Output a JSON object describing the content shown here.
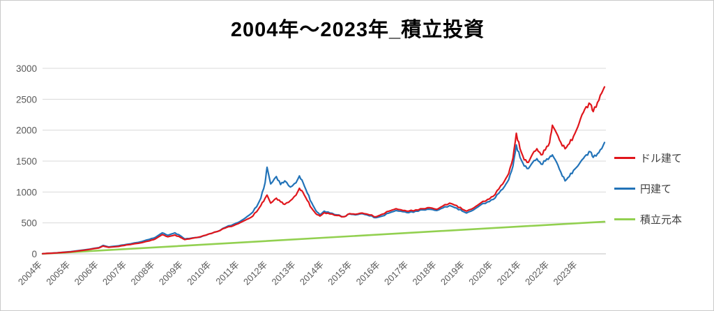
{
  "page": {
    "background": "#ffffff",
    "border_color": "#c9c9c9",
    "grid_color": "#d9d9d9",
    "axis_color": "#bfbfbf",
    "tick_label_color": "#595959"
  },
  "chart_data": {
    "type": "line",
    "title": "2004年〜2023年_積立投資",
    "xlabel": "",
    "ylabel": "",
    "ylim": [
      0,
      3000
    ],
    "ytick_step": 500,
    "x_range": [
      2004,
      2024
    ],
    "x_tick_labels": [
      "2004年",
      "2005年",
      "2006年",
      "2007年",
      "2008年",
      "2009年",
      "2010年",
      "2011年",
      "2012年",
      "2013年",
      "2014年",
      "2015年",
      "2016年",
      "2017年",
      "2018年",
      "2019年",
      "2020年",
      "2021年",
      "2022年",
      "2023年"
    ],
    "grid": true,
    "legend_position": "right",
    "series": [
      {
        "name": "ドル建て",
        "color": "#e0161c",
        "points": [
          [
            2004.0,
            2
          ],
          [
            2004.5,
            15
          ],
          [
            2005.0,
            32
          ],
          [
            2005.5,
            60
          ],
          [
            2006.0,
            95
          ],
          [
            2006.15,
            125
          ],
          [
            2006.35,
            105
          ],
          [
            2006.7,
            120
          ],
          [
            2007.0,
            145
          ],
          [
            2007.4,
            170
          ],
          [
            2007.8,
            210
          ],
          [
            2008.0,
            240
          ],
          [
            2008.25,
            310
          ],
          [
            2008.45,
            275
          ],
          [
            2008.7,
            305
          ],
          [
            2008.9,
            265
          ],
          [
            2009.05,
            230
          ],
          [
            2009.3,
            250
          ],
          [
            2009.6,
            275
          ],
          [
            2009.9,
            320
          ],
          [
            2010.2,
            360
          ],
          [
            2010.5,
            420
          ],
          [
            2010.8,
            460
          ],
          [
            2011.0,
            500
          ],
          [
            2011.2,
            545
          ],
          [
            2011.4,
            590
          ],
          [
            2011.6,
            680
          ],
          [
            2011.75,
            780
          ],
          [
            2011.9,
            900
          ],
          [
            2011.97,
            950
          ],
          [
            2012.1,
            820
          ],
          [
            2012.3,
            900
          ],
          [
            2012.45,
            840
          ],
          [
            2012.6,
            800
          ],
          [
            2012.8,
            860
          ],
          [
            2013.0,
            950
          ],
          [
            2013.12,
            1060
          ],
          [
            2013.25,
            990
          ],
          [
            2013.4,
            860
          ],
          [
            2013.55,
            740
          ],
          [
            2013.7,
            650
          ],
          [
            2013.85,
            610
          ],
          [
            2014.0,
            665
          ],
          [
            2014.2,
            645
          ],
          [
            2014.45,
            620
          ],
          [
            2014.7,
            600
          ],
          [
            2014.9,
            650
          ],
          [
            2015.1,
            640
          ],
          [
            2015.35,
            660
          ],
          [
            2015.6,
            630
          ],
          [
            2015.85,
            600
          ],
          [
            2016.05,
            640
          ],
          [
            2016.3,
            690
          ],
          [
            2016.55,
            730
          ],
          [
            2016.8,
            700
          ],
          [
            2017.0,
            690
          ],
          [
            2017.25,
            710
          ],
          [
            2017.5,
            730
          ],
          [
            2017.75,
            745
          ],
          [
            2018.0,
            720
          ],
          [
            2018.2,
            770
          ],
          [
            2018.45,
            820
          ],
          [
            2018.7,
            780
          ],
          [
            2018.9,
            720
          ],
          [
            2019.05,
            690
          ],
          [
            2019.3,
            740
          ],
          [
            2019.55,
            820
          ],
          [
            2019.8,
            880
          ],
          [
            2020.0,
            930
          ],
          [
            2020.2,
            1050
          ],
          [
            2020.4,
            1180
          ],
          [
            2020.55,
            1300
          ],
          [
            2020.7,
            1550
          ],
          [
            2020.82,
            1950
          ],
          [
            2020.95,
            1700
          ],
          [
            2021.1,
            1520
          ],
          [
            2021.25,
            1480
          ],
          [
            2021.4,
            1620
          ],
          [
            2021.55,
            1700
          ],
          [
            2021.7,
            1600
          ],
          [
            2021.85,
            1680
          ],
          [
            2022.0,
            1800
          ],
          [
            2022.1,
            2080
          ],
          [
            2022.25,
            1950
          ],
          [
            2022.4,
            1800
          ],
          [
            2022.55,
            1700
          ],
          [
            2022.7,
            1780
          ],
          [
            2022.85,
            1900
          ],
          [
            2023.0,
            2050
          ],
          [
            2023.15,
            2250
          ],
          [
            2023.3,
            2380
          ],
          [
            2023.45,
            2420
          ],
          [
            2023.55,
            2300
          ],
          [
            2023.7,
            2450
          ],
          [
            2023.85,
            2600
          ],
          [
            2023.95,
            2700
          ]
        ]
      },
      {
        "name": "円建て",
        "color": "#2273b8",
        "points": [
          [
            2004.0,
            2
          ],
          [
            2004.5,
            16
          ],
          [
            2005.0,
            36
          ],
          [
            2005.5,
            65
          ],
          [
            2006.0,
            100
          ],
          [
            2006.15,
            135
          ],
          [
            2006.35,
            112
          ],
          [
            2006.7,
            130
          ],
          [
            2007.0,
            155
          ],
          [
            2007.4,
            185
          ],
          [
            2007.8,
            235
          ],
          [
            2008.0,
            265
          ],
          [
            2008.25,
            340
          ],
          [
            2008.45,
            300
          ],
          [
            2008.7,
            340
          ],
          [
            2008.9,
            290
          ],
          [
            2009.05,
            240
          ],
          [
            2009.3,
            255
          ],
          [
            2009.6,
            270
          ],
          [
            2009.9,
            320
          ],
          [
            2010.2,
            360
          ],
          [
            2010.5,
            430
          ],
          [
            2010.8,
            480
          ],
          [
            2011.0,
            520
          ],
          [
            2011.2,
            580
          ],
          [
            2011.4,
            650
          ],
          [
            2011.6,
            760
          ],
          [
            2011.75,
            900
          ],
          [
            2011.9,
            1150
          ],
          [
            2011.97,
            1400
          ],
          [
            2012.1,
            1130
          ],
          [
            2012.3,
            1250
          ],
          [
            2012.45,
            1120
          ],
          [
            2012.6,
            1180
          ],
          [
            2012.8,
            1080
          ],
          [
            2013.0,
            1150
          ],
          [
            2013.12,
            1260
          ],
          [
            2013.25,
            1150
          ],
          [
            2013.4,
            980
          ],
          [
            2013.55,
            830
          ],
          [
            2013.7,
            700
          ],
          [
            2013.85,
            630
          ],
          [
            2014.0,
            690
          ],
          [
            2014.2,
            660
          ],
          [
            2014.45,
            630
          ],
          [
            2014.7,
            600
          ],
          [
            2014.9,
            645
          ],
          [
            2015.1,
            630
          ],
          [
            2015.35,
            650
          ],
          [
            2015.6,
            615
          ],
          [
            2015.85,
            585
          ],
          [
            2016.05,
            610
          ],
          [
            2016.3,
            660
          ],
          [
            2016.55,
            700
          ],
          [
            2016.8,
            680
          ],
          [
            2017.0,
            665
          ],
          [
            2017.25,
            690
          ],
          [
            2017.5,
            710
          ],
          [
            2017.75,
            720
          ],
          [
            2018.0,
            700
          ],
          [
            2018.2,
            740
          ],
          [
            2018.45,
            780
          ],
          [
            2018.7,
            740
          ],
          [
            2018.9,
            690
          ],
          [
            2019.05,
            660
          ],
          [
            2019.3,
            710
          ],
          [
            2019.55,
            790
          ],
          [
            2019.8,
            840
          ],
          [
            2020.0,
            880
          ],
          [
            2020.2,
            980
          ],
          [
            2020.4,
            1090
          ],
          [
            2020.55,
            1200
          ],
          [
            2020.7,
            1420
          ],
          [
            2020.82,
            1760
          ],
          [
            2020.95,
            1560
          ],
          [
            2021.1,
            1420
          ],
          [
            2021.25,
            1380
          ],
          [
            2021.4,
            1480
          ],
          [
            2021.55,
            1540
          ],
          [
            2021.7,
            1450
          ],
          [
            2021.85,
            1500
          ],
          [
            2022.0,
            1560
          ],
          [
            2022.1,
            1600
          ],
          [
            2022.25,
            1480
          ],
          [
            2022.4,
            1320
          ],
          [
            2022.55,
            1180
          ],
          [
            2022.7,
            1250
          ],
          [
            2022.85,
            1350
          ],
          [
            2023.0,
            1420
          ],
          [
            2023.15,
            1520
          ],
          [
            2023.3,
            1600
          ],
          [
            2023.45,
            1650
          ],
          [
            2023.55,
            1560
          ],
          [
            2023.7,
            1620
          ],
          [
            2023.85,
            1700
          ],
          [
            2023.95,
            1800
          ]
        ]
      },
      {
        "name": "積立元本",
        "color": "#92d050",
        "points": [
          [
            2004.0,
            0
          ],
          [
            2023.95,
            520
          ]
        ]
      }
    ]
  }
}
